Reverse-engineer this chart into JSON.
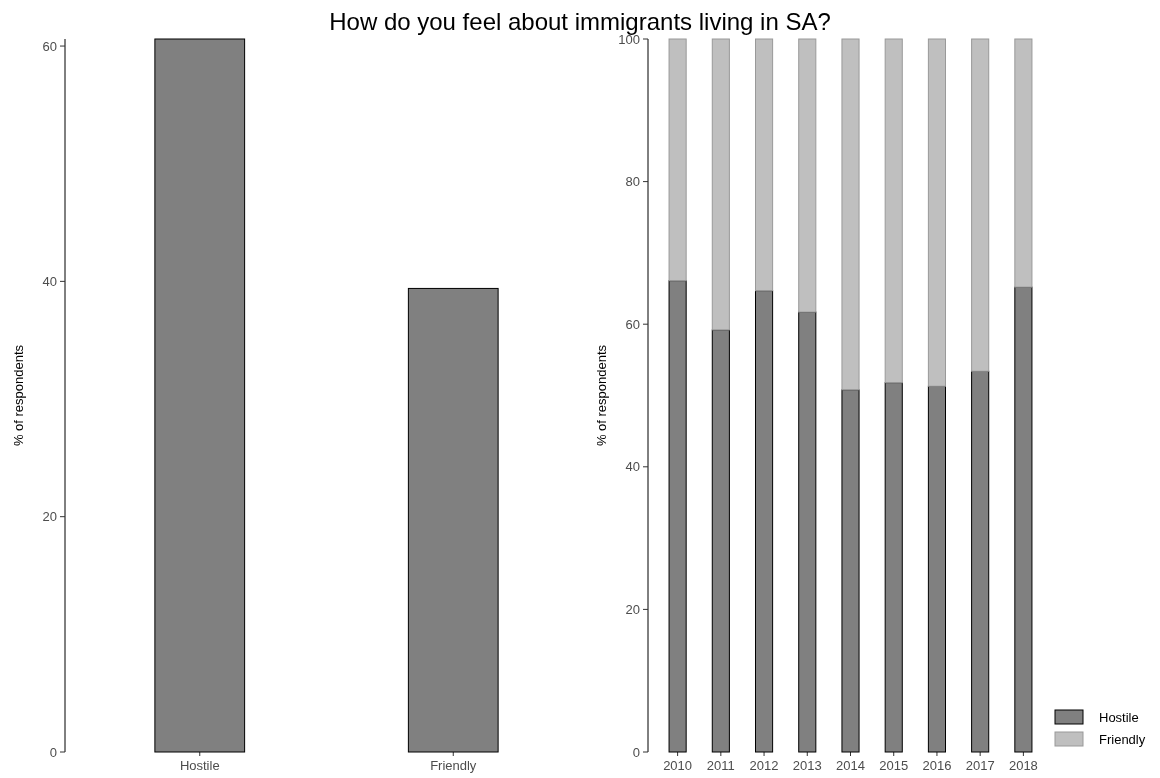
{
  "chart_data": [
    {
      "type": "bar",
      "title": "How do you feel about immigrants living in SA?",
      "ylabel": "% of respondents",
      "categories": [
        "Hostile",
        "Friendly"
      ],
      "values": [
        60.6,
        39.4
      ],
      "color": "#808080",
      "ylim": [
        0,
        60.6
      ],
      "yticks": [
        0,
        20,
        40,
        60
      ],
      "grid": false,
      "legend": false
    },
    {
      "type": "bar",
      "ylabel": "% of respondents",
      "categories": [
        "2010",
        "2011",
        "2012",
        "2013",
        "2014",
        "2015",
        "2016",
        "2017",
        "2018"
      ],
      "stacked": true,
      "series": [
        {
          "name": "Hostile",
          "color": "#808080",
          "values": [
            66.1,
            59.2,
            64.7,
            61.7,
            50.8,
            51.8,
            51.3,
            53.4,
            65.2
          ]
        },
        {
          "name": "Friendly",
          "color": "#bfbfbf",
          "values": [
            33.9,
            40.8,
            35.3,
            38.3,
            49.2,
            48.2,
            48.7,
            46.6,
            34.8
          ]
        }
      ],
      "ylim": [
        0,
        100
      ],
      "yticks": [
        0,
        20,
        40,
        60,
        80,
        100
      ],
      "grid": false,
      "legend": "bottom right"
    }
  ]
}
